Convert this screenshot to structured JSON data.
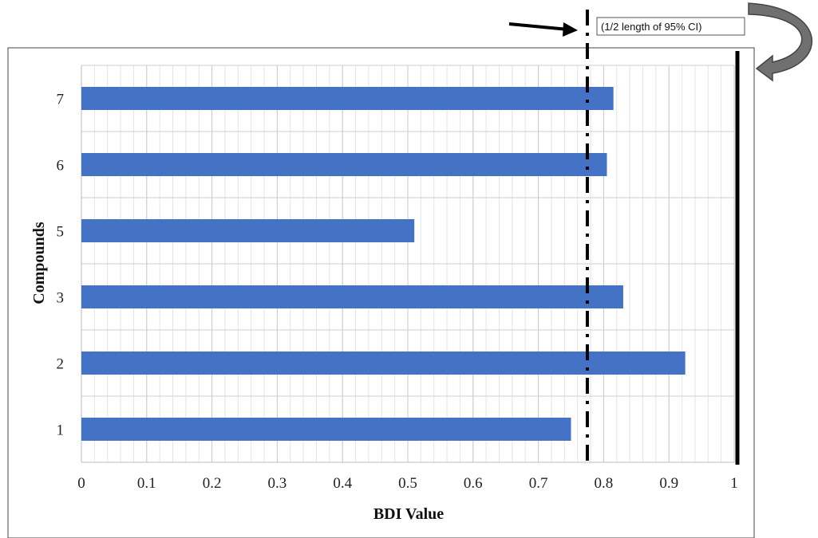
{
  "chart_data": {
    "type": "bar",
    "orientation": "horizontal",
    "categories": [
      "1",
      "2",
      "3",
      "5",
      "6",
      "7"
    ],
    "values": [
      0.75,
      0.925,
      0.83,
      0.51,
      0.805,
      0.815
    ],
    "xlabel": "BDI Value",
    "ylabel": "Compounds",
    "xlim": [
      0,
      1
    ],
    "xticks": [
      "0",
      "0.1",
      "0.2",
      "0.3",
      "0.4",
      "0.5",
      "0.6",
      "0.7",
      "0.8",
      "0.9",
      "1"
    ],
    "grid": true,
    "bar_color": "#4472C4",
    "reference_lines": [
      {
        "value": 0.775,
        "style": "dash-dot"
      },
      {
        "value": 1.0,
        "style": "solid"
      }
    ],
    "annotation": "(1/2 length of 95% CI)"
  }
}
